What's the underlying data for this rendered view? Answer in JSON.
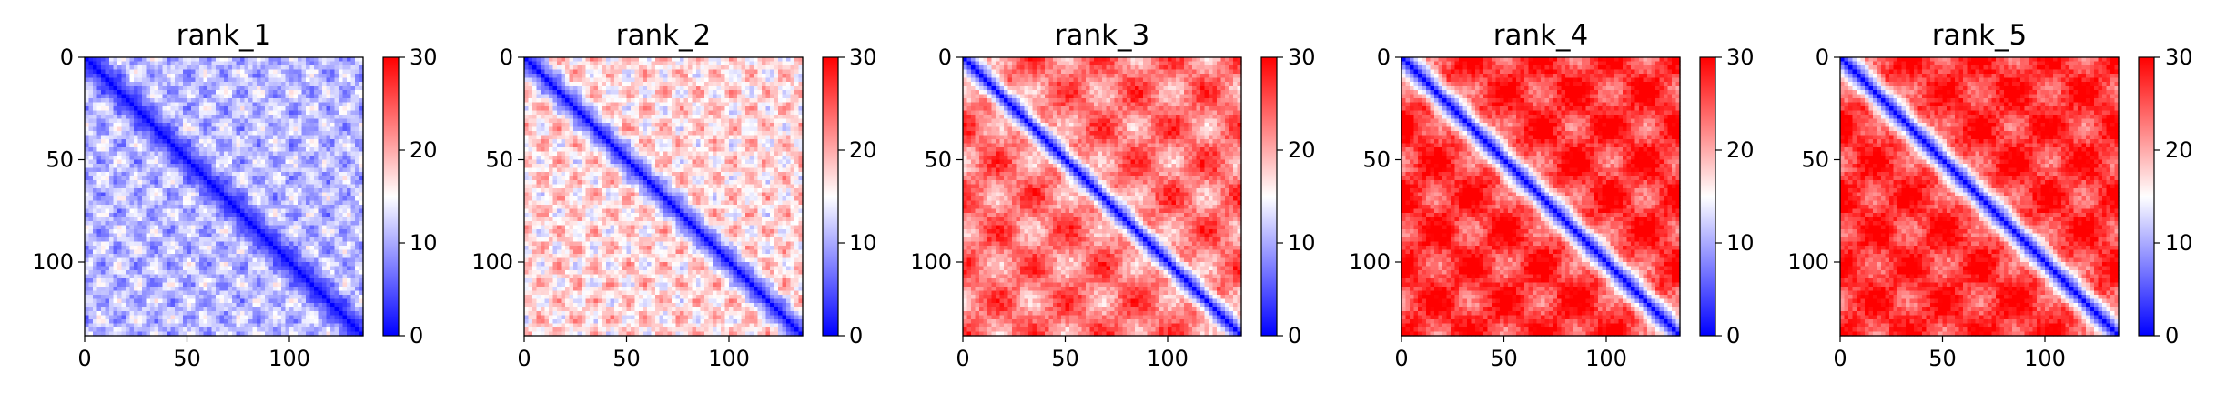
{
  "chart_data": [
    {
      "type": "heatmap",
      "title": "rank_1",
      "matrix_size": 136,
      "x_ticks": [
        "0",
        "50",
        "100"
      ],
      "y_ticks": [
        "0",
        "50",
        "100"
      ],
      "colorbar": {
        "colormap": "bwr",
        "range": [
          0,
          30
        ],
        "ticks": [
          "0",
          "10",
          "20",
          "30"
        ]
      },
      "pattern": {
        "background_distance": 11,
        "block_period": 17,
        "block_contrast": 7,
        "diagonal_band": 5
      }
    },
    {
      "type": "heatmap",
      "title": "rank_2",
      "matrix_size": 136,
      "x_ticks": [
        "0",
        "50",
        "100"
      ],
      "y_ticks": [
        "0",
        "50",
        "100"
      ],
      "colorbar": {
        "colormap": "bwr",
        "range": [
          0,
          30
        ],
        "ticks": [
          "0",
          "10",
          "20",
          "30"
        ]
      },
      "pattern": {
        "background_distance": 17,
        "block_period": 17,
        "block_contrast": 8,
        "diagonal_band": 5
      }
    },
    {
      "type": "heatmap",
      "title": "rank_3",
      "matrix_size": 136,
      "x_ticks": [
        "0",
        "50",
        "100"
      ],
      "y_ticks": [
        "0",
        "50",
        "100"
      ],
      "colorbar": {
        "colormap": "bwr",
        "range": [
          0,
          30
        ],
        "ticks": [
          "0",
          "10",
          "20",
          "30"
        ]
      },
      "pattern": {
        "background_distance": 23,
        "block_period": 34,
        "block_contrast": 9,
        "diagonal_band": 5
      }
    },
    {
      "type": "heatmap",
      "title": "rank_4",
      "matrix_size": 136,
      "x_ticks": [
        "0",
        "50",
        "100"
      ],
      "y_ticks": [
        "0",
        "50",
        "100"
      ],
      "colorbar": {
        "colormap": "bwr",
        "range": [
          0,
          30
        ],
        "ticks": [
          "0",
          "10",
          "20",
          "30"
        ]
      },
      "pattern": {
        "background_distance": 27,
        "block_period": 34,
        "block_contrast": 9,
        "diagonal_band": 6
      }
    },
    {
      "type": "heatmap",
      "title": "rank_5",
      "matrix_size": 136,
      "x_ticks": [
        "0",
        "50",
        "100"
      ],
      "y_ticks": [
        "0",
        "50",
        "100"
      ],
      "colorbar": {
        "colormap": "bwr",
        "range": [
          0,
          30
        ],
        "ticks": [
          "0",
          "10",
          "20",
          "30"
        ]
      },
      "pattern": {
        "background_distance": 27,
        "block_period": 34,
        "block_contrast": 8,
        "diagonal_band": 6
      }
    }
  ]
}
